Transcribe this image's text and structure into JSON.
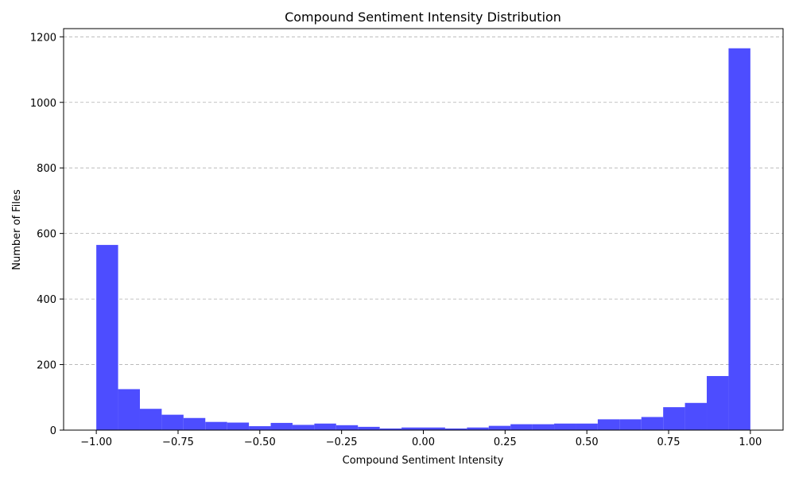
{
  "chart_data": {
    "type": "bar",
    "title": "Compound Sentiment Intensity Distribution",
    "xlabel": "Compound Sentiment Intensity",
    "ylabel": "Number of Files",
    "xlim": [
      -1.1,
      1.1
    ],
    "ylim": [
      0,
      1225
    ],
    "bins": 30,
    "bin_range": [
      -1.0,
      1.0
    ],
    "values": [
      565,
      125,
      65,
      47,
      37,
      25,
      23,
      12,
      22,
      16,
      20,
      15,
      10,
      5,
      8,
      8,
      5,
      8,
      13,
      18,
      18,
      20,
      20,
      33,
      33,
      40,
      70,
      83,
      165,
      1165
    ],
    "bar_color": "#4d4dff",
    "x_ticks": [
      -1.0,
      -0.75,
      -0.5,
      -0.25,
      0.0,
      0.25,
      0.5,
      0.75,
      1.0
    ],
    "x_tick_labels": [
      "−1.00",
      "−0.75",
      "−0.50",
      "−0.25",
      "0.00",
      "0.25",
      "0.50",
      "0.75",
      "1.00"
    ],
    "y_ticks": [
      0,
      200,
      400,
      600,
      800,
      1000,
      1200
    ],
    "y_tick_labels": [
      "0",
      "200",
      "400",
      "600",
      "800",
      "1000",
      "1200"
    ],
    "grid": "y-dashed"
  }
}
